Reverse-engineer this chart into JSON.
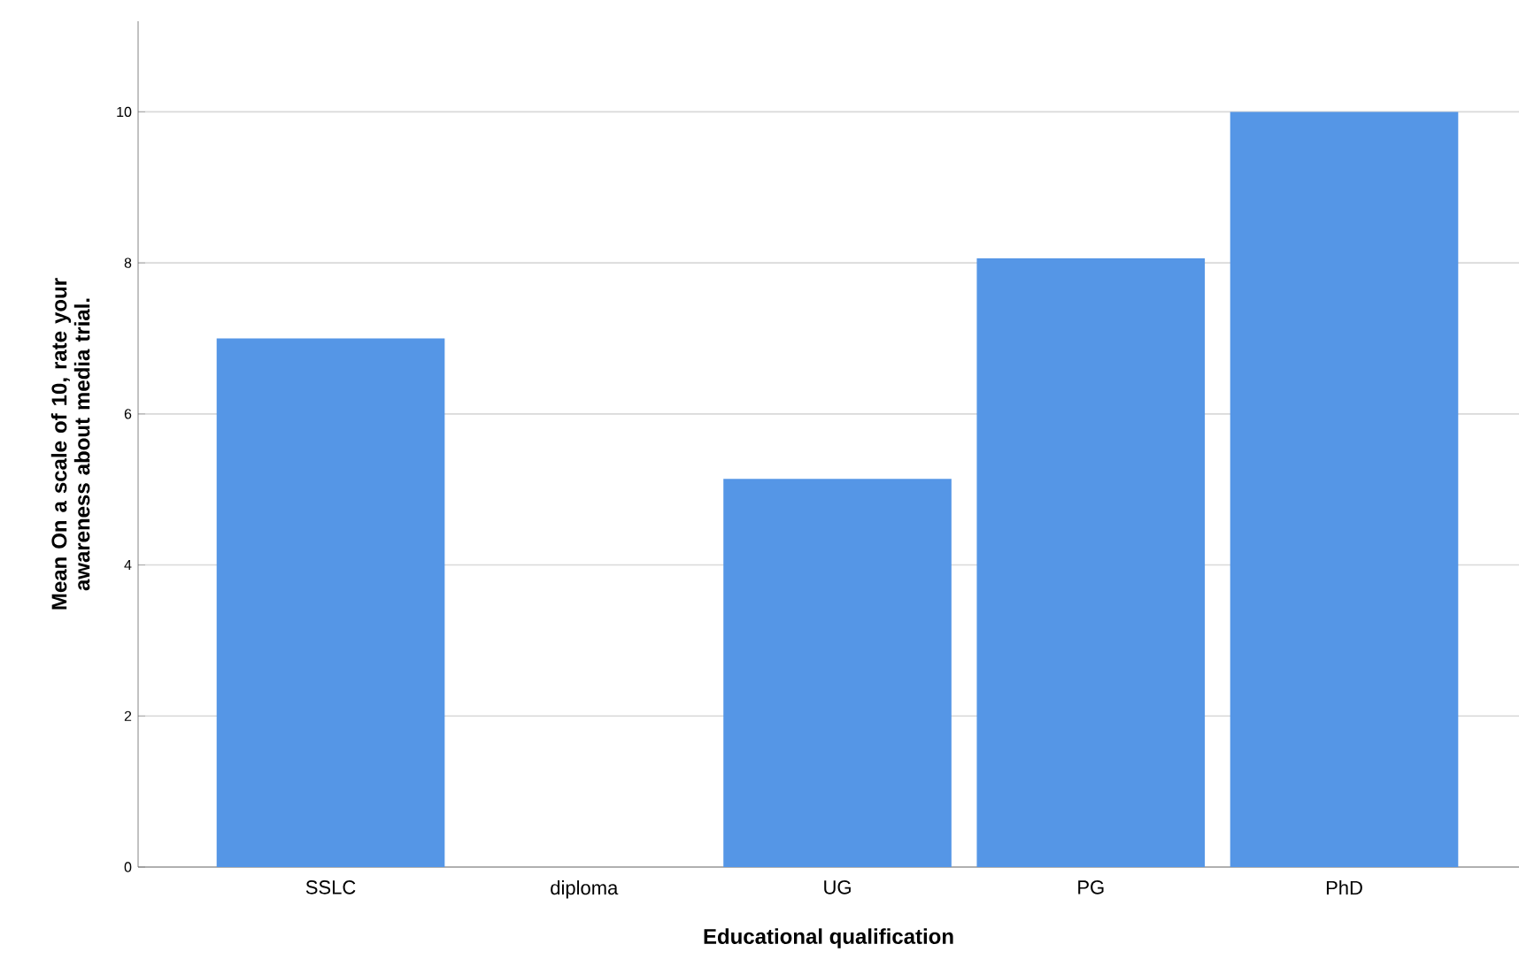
{
  "chart_data": {
    "type": "bar",
    "xlabel": "Educational qualification",
    "ylabel": "Mean On a scale of 10, rate your awareness about media trial.",
    "categories": [
      "SSLC",
      "diploma",
      "UG",
      "PG",
      "PhD"
    ],
    "values": [
      7.0,
      null,
      5.14,
      8.06,
      10.0
    ],
    "color": "#5596e6",
    "ylim": [
      0,
      11.2
    ],
    "yticks": [
      0,
      2,
      4,
      6,
      8,
      10
    ],
    "grid": "y"
  }
}
